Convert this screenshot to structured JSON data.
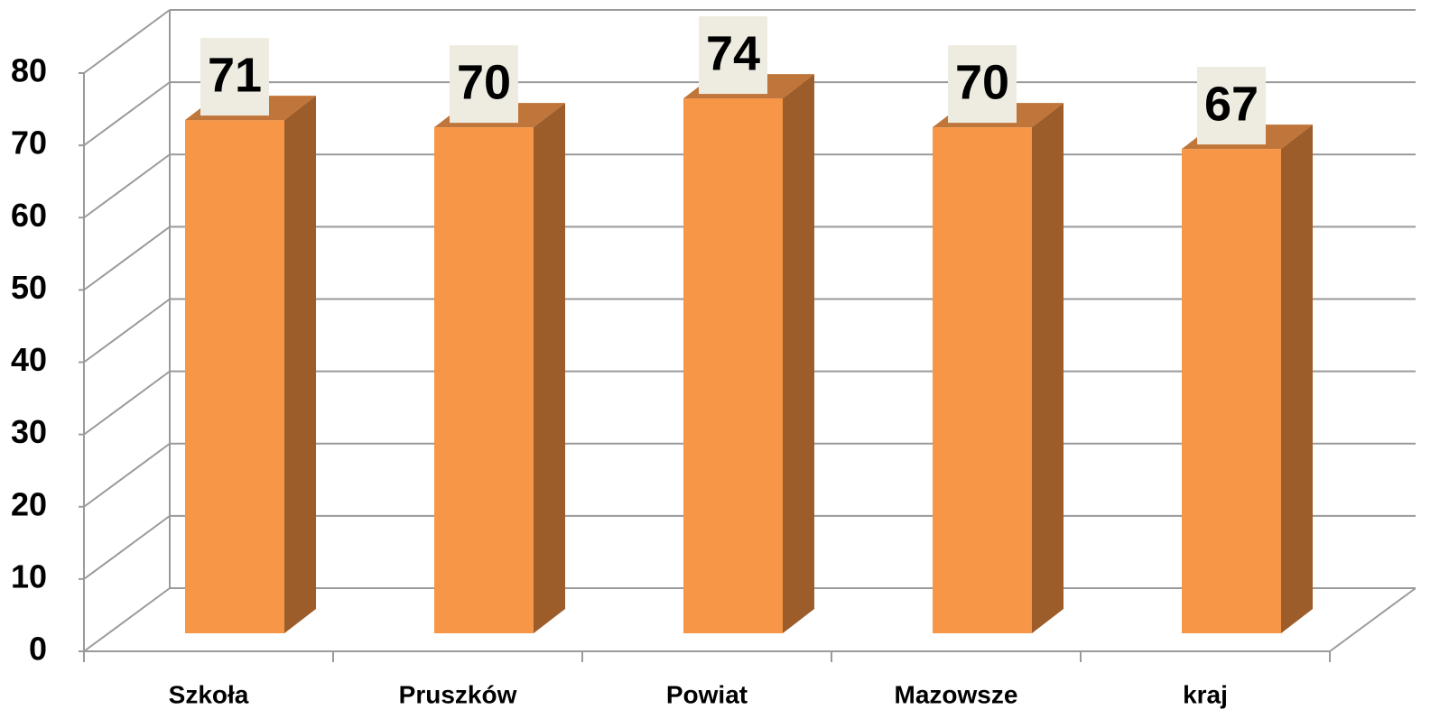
{
  "chart_data": {
    "type": "bar3d",
    "categories": [
      "Szkoła",
      "Pruszków",
      "Powiat",
      "Mazowsze",
      "kraj"
    ],
    "values": [
      71,
      70,
      74,
      70,
      67
    ],
    "color": "#f79646",
    "ylim": [
      0,
      80
    ],
    "yticks": [
      0,
      10,
      20,
      30,
      40,
      50,
      60,
      70,
      80
    ],
    "grid": true
  }
}
